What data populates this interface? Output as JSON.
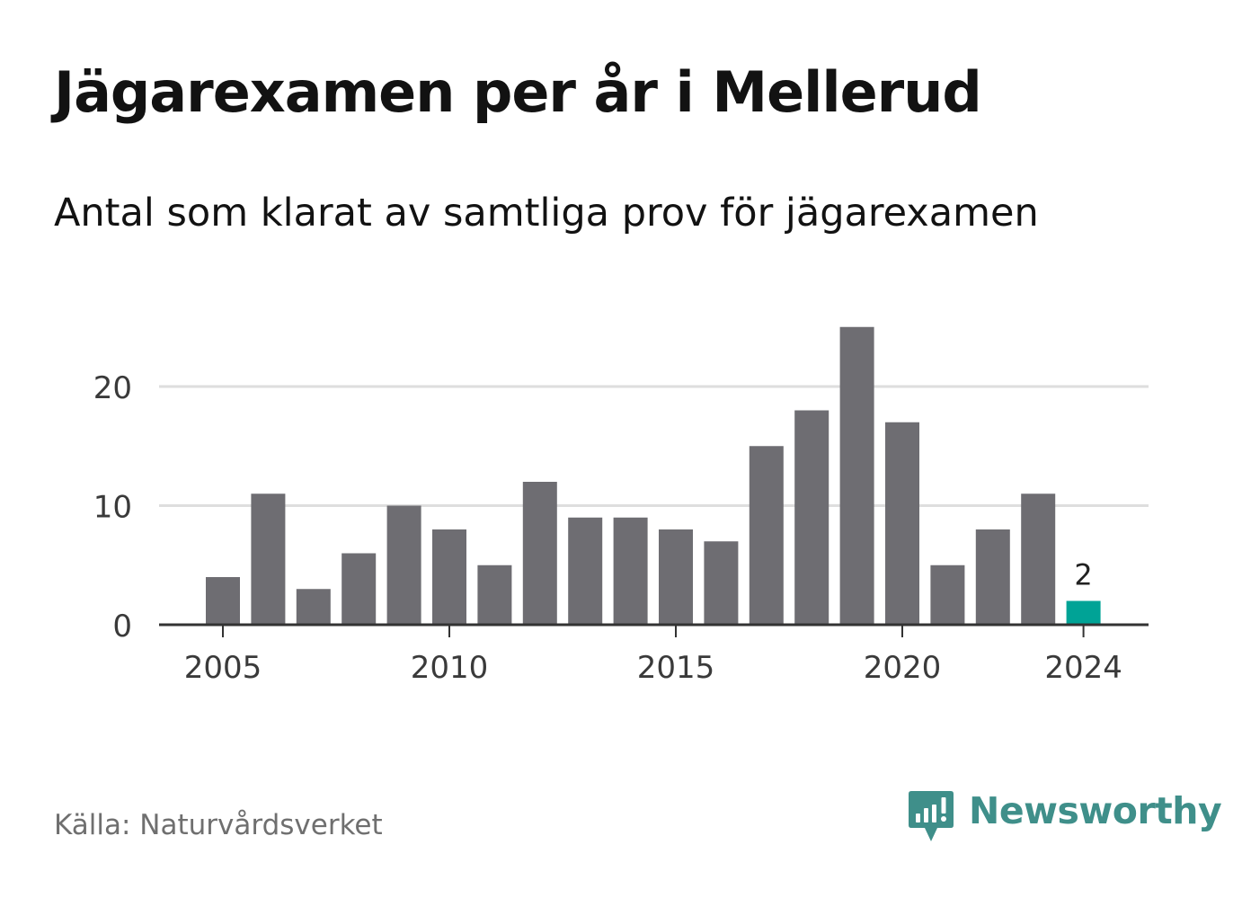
{
  "title": "Jägarexamen per år i Mellerud",
  "subtitle": "Antal som klarat av samtliga prov för jägarexamen",
  "source": "Källa: Naturvårdsverket",
  "brand": {
    "name": "Newsworthy",
    "logo_icon": "newsworthy-chart-bubble-icon",
    "color": "#3f8f8a"
  },
  "chart_data": {
    "type": "bar",
    "categories": [
      2005,
      2006,
      2007,
      2008,
      2009,
      2010,
      2011,
      2012,
      2013,
      2014,
      2015,
      2016,
      2017,
      2018,
      2019,
      2020,
      2021,
      2022,
      2023,
      2024
    ],
    "values": [
      4,
      11,
      3,
      6,
      10,
      8,
      5,
      12,
      9,
      9,
      8,
      7,
      15,
      18,
      25,
      17,
      5,
      8,
      11,
      2
    ],
    "x_tick_labels": [
      "2005",
      "2010",
      "2015",
      "2020",
      "2024"
    ],
    "y_ticks": [
      0,
      10,
      20
    ],
    "ylim": [
      0,
      25
    ],
    "grid": true,
    "highlight": {
      "category": 2024,
      "label": "2",
      "color": "#00a396"
    },
    "bar_color": "#6e6d72",
    "title": "Jägarexamen per år i Mellerud",
    "xlabel": "",
    "ylabel": ""
  }
}
